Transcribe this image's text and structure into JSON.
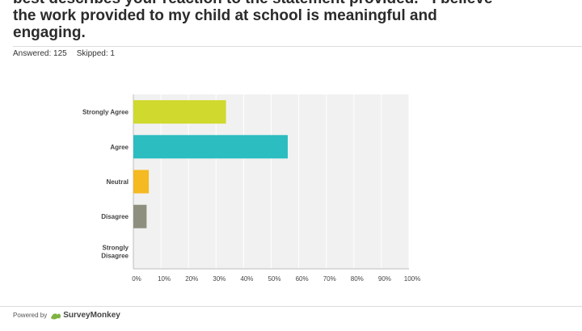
{
  "question": {
    "lines": [
      "best describes your reaction to the statement provided. - I believe",
      "the work provided to my child at school is meaningful and",
      "engaging."
    ]
  },
  "stats": {
    "answered": "Answered: 125",
    "skipped": "Skipped: 1"
  },
  "footer": {
    "powered_by": "Powered by",
    "brand": "SurveyMonkey"
  },
  "chart_data": {
    "type": "bar",
    "orientation": "horizontal",
    "categories": [
      "Strongly Agree",
      "Agree",
      "Neutral",
      "Disagree",
      "Strongly Disagree"
    ],
    "values": [
      33.6,
      56.0,
      5.6,
      4.8,
      0.0
    ],
    "colors": [
      "#d0d92e",
      "#2bbdc0",
      "#f5b921",
      "#8f8f7f",
      "#cccccc"
    ],
    "xlim": [
      0,
      100
    ],
    "xticks": [
      "0%",
      "10%",
      "20%",
      "30%",
      "40%",
      "50%",
      "60%",
      "70%",
      "80%",
      "90%",
      "100%"
    ],
    "grid": true,
    "plot_background": "#f1f1f1"
  }
}
